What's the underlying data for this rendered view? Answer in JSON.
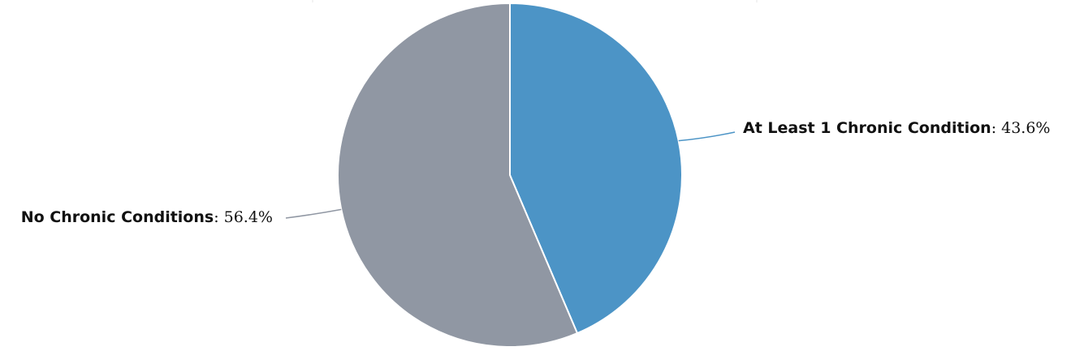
{
  "chart_data": {
    "type": "pie",
    "title": "",
    "unit": "%",
    "slices": [
      {
        "label": "At Least 1 Chronic Condition",
        "value": 43.6,
        "color": "#4c94c6"
      },
      {
        "label": "No Chronic Conditions",
        "value": 56.4,
        "color": "#9097a3"
      }
    ],
    "legend": "none",
    "labels": "outside with leader lines",
    "slice_border_color": "#ffffff"
  }
}
